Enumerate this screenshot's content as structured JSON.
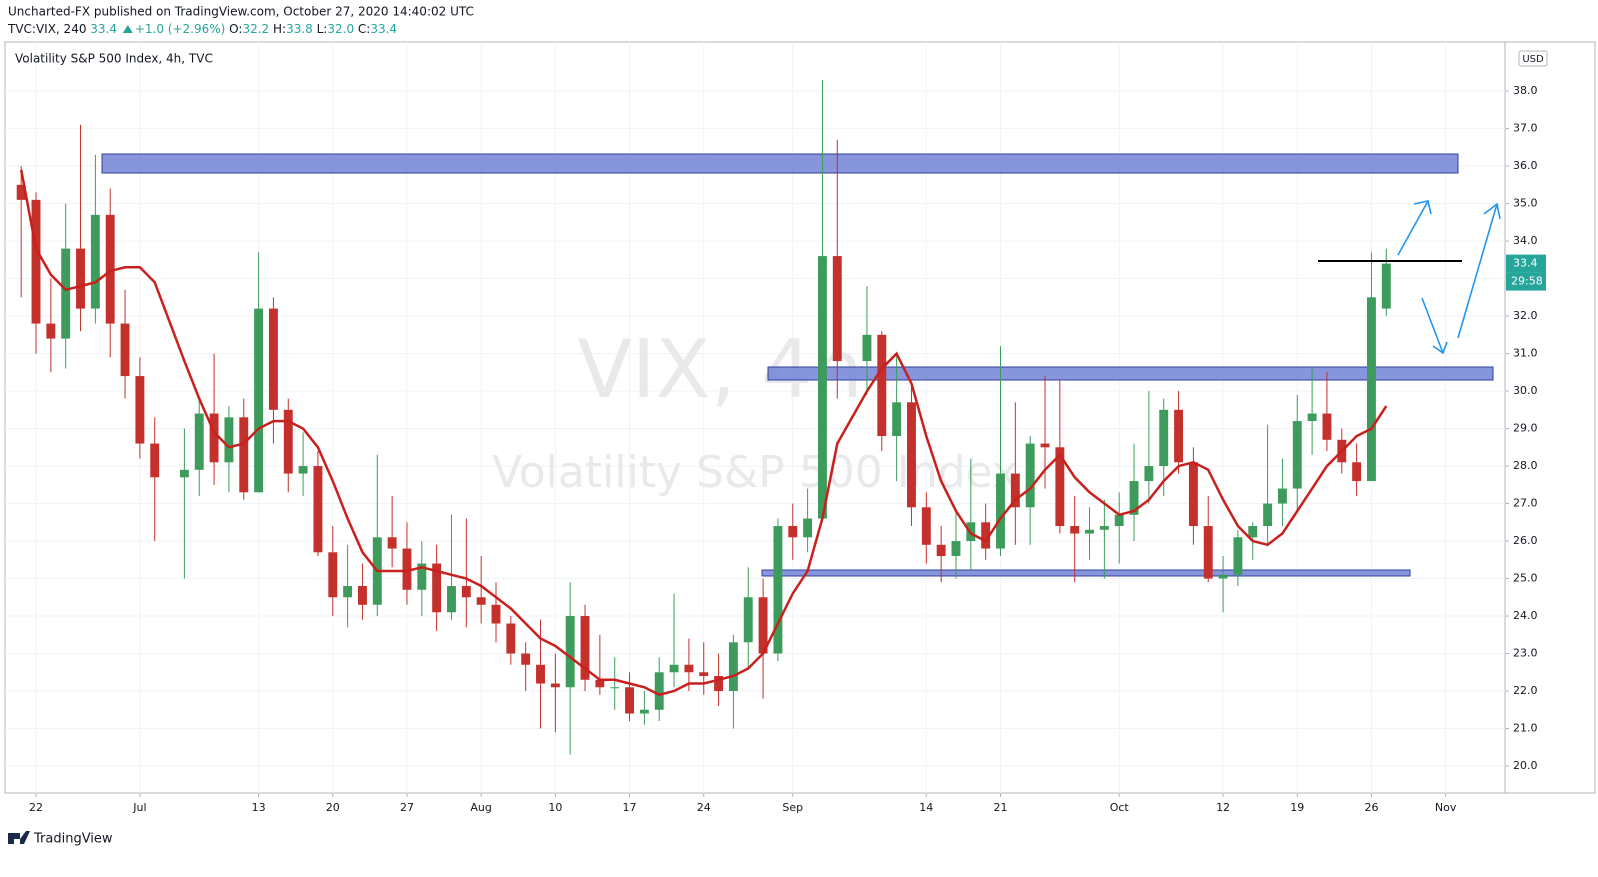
{
  "header": {
    "byline": "Uncharted-FX published on TradingView.com, October 27, 2020 14:40:02 UTC",
    "symbol": "TVC:VIX, 240",
    "last": "33.4",
    "change": "+1.0 (+2.96%)",
    "ohlc": [
      {
        "label": "O:",
        "value": "32.2"
      },
      {
        "label": "H:",
        "value": "33.8"
      },
      {
        "label": "L:",
        "value": "32.0"
      },
      {
        "label": "C:",
        "value": "33.4"
      }
    ]
  },
  "chart_data": {
    "type": "candlestick",
    "title": "Volatility S&P 500 Index, 4h, TVC",
    "watermark": "VIX, 4h",
    "watermark_subtitle": "Volatility S&P 500 Index",
    "currency": "USD",
    "last_price_label": "33.4",
    "countdown": "29:58",
    "up_color": "#3d9c5c",
    "down_color": "#c4302b",
    "ma_color": "#c9201e",
    "x": [
      -1,
      0,
      1,
      2,
      3,
      4,
      5,
      6,
      7,
      8,
      10,
      11,
      12,
      13,
      14,
      15,
      16,
      17,
      18,
      19,
      20,
      21,
      22,
      23,
      24,
      25,
      26,
      27,
      28,
      29,
      30,
      31,
      32,
      33,
      34,
      35,
      36,
      37,
      38,
      39,
      40,
      41,
      42,
      43,
      44,
      45,
      46,
      47,
      48,
      49,
      50,
      51,
      52,
      53,
      54,
      56,
      57,
      58,
      59,
      60,
      61,
      62,
      63,
      64,
      65,
      66,
      67,
      68,
      69,
      70,
      71,
      72,
      73,
      74,
      75,
      76,
      77,
      78,
      79,
      80,
      81,
      82,
      83,
      84,
      85,
      86,
      87,
      88,
      89,
      90,
      91
    ],
    "open": [
      35.5,
      35.1,
      31.8,
      31.4,
      33.8,
      32.2,
      34.7,
      31.8,
      30.4,
      28.6,
      27.7,
      27.9,
      29.4,
      28.1,
      29.3,
      27.3,
      32.2,
      29.5,
      27.8,
      28.0,
      25.7,
      24.5,
      24.8,
      24.3,
      26.1,
      25.8,
      24.7,
      25.4,
      24.1,
      24.8,
      24.5,
      24.3,
      23.8,
      23.0,
      22.7,
      22.2,
      22.1,
      24.0,
      22.3,
      22.1,
      22.1,
      21.4,
      21.5,
      22.5,
      22.7,
      22.5,
      22.4,
      22.0,
      23.3,
      24.5,
      23.0,
      26.4,
      26.1,
      26.6,
      33.6,
      30.8,
      31.5,
      28.8,
      29.7,
      26.9,
      25.9,
      25.6,
      26.0,
      26.5,
      25.8,
      27.8,
      26.9,
      28.6,
      28.5,
      26.4,
      26.2,
      26.3,
      26.4,
      26.7,
      27.6,
      28.0,
      29.5,
      28.1,
      26.4,
      25.0,
      25.1,
      26.1,
      26.4,
      27.0,
      27.4,
      29.2,
      29.4,
      28.7,
      28.1,
      27.6,
      32.2
    ],
    "high": [
      36.0,
      35.3,
      33.0,
      35.0,
      37.1,
      36.3,
      35.4,
      32.7,
      30.9,
      29.3,
      29.0,
      29.8,
      31.0,
      29.6,
      29.8,
      33.7,
      32.5,
      29.8,
      28.9,
      28.4,
      26.4,
      25.9,
      25.4,
      28.3,
      27.2,
      26.5,
      26.0,
      25.9,
      26.7,
      26.6,
      25.6,
      24.9,
      24.0,
      23.3,
      23.9,
      23.0,
      24.9,
      24.3,
      23.5,
      22.9,
      22.5,
      22.0,
      22.9,
      24.6,
      23.4,
      23.3,
      23.0,
      23.5,
      25.3,
      25.0,
      26.6,
      27.0,
      27.4,
      38.3,
      36.7,
      32.8,
      31.6,
      31.0,
      30.2,
      27.3,
      26.4,
      26.8,
      28.2,
      27.0,
      31.2,
      29.7,
      28.8,
      30.4,
      30.3,
      27.2,
      26.9,
      27.1,
      27.3,
      28.6,
      30.0,
      29.8,
      30.0,
      28.5,
      27.2,
      25.6,
      26.3,
      26.5,
      29.1,
      28.2,
      29.9,
      30.6,
      30.5,
      29.0,
      28.6,
      33.7,
      33.8
    ],
    "low": [
      32.5,
      31.0,
      30.5,
      30.6,
      31.6,
      31.8,
      30.9,
      29.8,
      28.2,
      26.0,
      25.0,
      27.2,
      27.5,
      27.3,
      27.1,
      27.3,
      28.6,
      27.3,
      27.2,
      25.6,
      24.0,
      23.7,
      23.9,
      24.0,
      25.3,
      24.3,
      24.0,
      23.6,
      23.9,
      23.7,
      23.8,
      23.3,
      22.7,
      22.0,
      21.0,
      20.9,
      20.3,
      22.0,
      21.9,
      21.5,
      21.2,
      21.1,
      21.2,
      22.1,
      22.0,
      21.9,
      21.6,
      21.0,
      22.6,
      21.8,
      22.8,
      25.5,
      25.7,
      26.5,
      29.8,
      29.9,
      28.4,
      27.6,
      26.4,
      25.4,
      24.9,
      25.0,
      25.2,
      25.5,
      25.6,
      25.9,
      25.9,
      27.4,
      26.2,
      24.9,
      25.5,
      25.0,
      25.4,
      26.0,
      27.0,
      27.2,
      27.8,
      25.9,
      24.9,
      24.1,
      24.8,
      25.5,
      25.9,
      26.4,
      26.8,
      28.3,
      28.4,
      27.8,
      27.2,
      27.6,
      32.0
    ],
    "close": [
      35.1,
      31.8,
      31.4,
      33.8,
      32.2,
      34.7,
      31.8,
      30.4,
      28.6,
      27.7,
      27.9,
      29.4,
      28.1,
      29.3,
      27.3,
      32.2,
      29.5,
      27.8,
      28.0,
      25.7,
      24.5,
      24.8,
      24.3,
      26.1,
      25.8,
      24.7,
      25.4,
      24.1,
      24.8,
      24.5,
      24.3,
      23.8,
      23.0,
      22.7,
      22.2,
      22.1,
      24.0,
      22.3,
      22.1,
      22.1,
      21.4,
      21.5,
      22.5,
      22.7,
      22.5,
      22.4,
      22.0,
      23.3,
      24.5,
      23.0,
      26.4,
      26.1,
      26.6,
      33.6,
      30.8,
      31.5,
      28.8,
      29.7,
      26.9,
      25.9,
      25.6,
      26.0,
      26.5,
      25.8,
      27.8,
      26.9,
      28.6,
      28.5,
      26.4,
      26.2,
      26.3,
      26.4,
      26.7,
      27.6,
      28.0,
      29.5,
      28.1,
      26.4,
      25.0,
      25.1,
      26.1,
      26.4,
      27.0,
      27.4,
      29.2,
      29.4,
      28.7,
      28.1,
      27.6,
      32.5,
      33.4
    ],
    "ma_values": [
      35.9,
      33.8,
      33.1,
      32.7,
      32.8,
      32.9,
      33.2,
      33.3,
      33.3,
      32.9,
      30.8,
      29.8,
      28.9,
      28.5,
      28.6,
      29.0,
      29.2,
      29.2,
      29.0,
      28.5,
      27.6,
      26.6,
      25.7,
      25.2,
      25.2,
      25.2,
      25.3,
      25.2,
      25.1,
      25.0,
      24.8,
      24.5,
      24.2,
      23.8,
      23.4,
      23.2,
      22.9,
      22.6,
      22.3,
      22.3,
      22.2,
      22.1,
      21.9,
      22.0,
      22.2,
      22.2,
      22.3,
      22.4,
      22.6,
      23.0,
      23.8,
      24.6,
      25.2,
      26.6,
      28.6,
      30.0,
      30.6,
      31.0,
      30.2,
      28.8,
      27.6,
      26.8,
      26.2,
      26.0,
      26.6,
      27.1,
      27.4,
      27.9,
      28.3,
      27.7,
      27.3,
      27.0,
      26.7,
      26.8,
      27.1,
      27.6,
      28.0,
      28.1,
      27.9,
      27.1,
      26.4,
      26.0,
      25.9,
      26.2,
      26.8,
      27.4,
      28.0,
      28.4,
      28.8,
      29.0,
      29.6
    ],
    "xlim": [
      -2.09,
      99
    ],
    "ylim": [
      19.28,
      39.31
    ],
    "xticks": [
      {
        "value": 0,
        "label": "22"
      },
      {
        "value": 7,
        "label": "Jul"
      },
      {
        "value": 15,
        "label": "13"
      },
      {
        "value": 20,
        "label": "20"
      },
      {
        "value": 25,
        "label": "27"
      },
      {
        "value": 30,
        "label": "Aug"
      },
      {
        "value": 35,
        "label": "10"
      },
      {
        "value": 40,
        "label": "17"
      },
      {
        "value": 45,
        "label": "24"
      },
      {
        "value": 51,
        "label": "Sep"
      },
      {
        "value": 60,
        "label": "14"
      },
      {
        "value": 65,
        "label": "21"
      },
      {
        "value": 73,
        "label": "Oct"
      },
      {
        "value": 80,
        "label": "12"
      },
      {
        "value": 85,
        "label": "19"
      },
      {
        "value": 90,
        "label": "26"
      },
      {
        "value": 95,
        "label": "Nov"
      }
    ],
    "yticks": [
      {
        "value": 20,
        "label": "20.0"
      },
      {
        "value": 21,
        "label": "21.0"
      },
      {
        "value": 22,
        "label": "22.0"
      },
      {
        "value": 23,
        "label": "23.0"
      },
      {
        "value": 24,
        "label": "24.0"
      },
      {
        "value": 25,
        "label": "25.0"
      },
      {
        "value": 26,
        "label": "26.0"
      },
      {
        "value": 27,
        "label": "27.0"
      },
      {
        "value": 28,
        "label": "28.0"
      },
      {
        "value": 29,
        "label": "29.0"
      },
      {
        "value": 30,
        "label": "30.0"
      },
      {
        "value": 31,
        "label": "31.0"
      },
      {
        "value": 32,
        "label": "32.0"
      },
      {
        "value": 33,
        "label": "33.0"
      },
      {
        "value": 34,
        "label": "34.0"
      },
      {
        "value": 35,
        "label": "35.0"
      },
      {
        "value": 36,
        "label": "36.0"
      },
      {
        "value": 37,
        "label": "37.0"
      },
      {
        "value": 38,
        "label": "38.0"
      }
    ],
    "grid": true,
    "footer": "TradingView"
  }
}
